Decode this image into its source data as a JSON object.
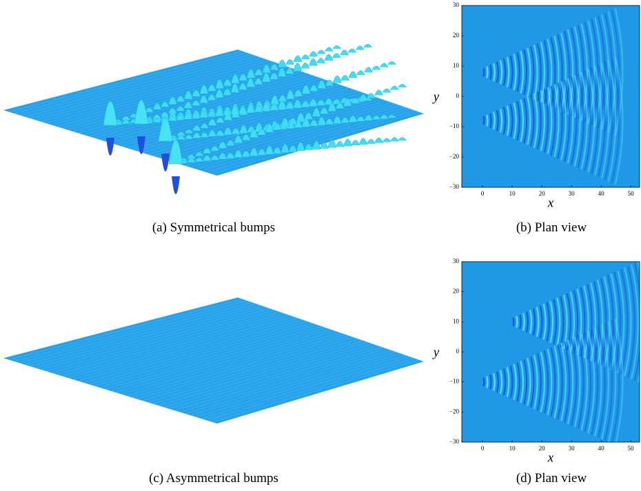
{
  "panels": [
    {
      "caption": "(a) Symmetrical bumps"
    },
    {
      "caption": "(b) Plan view",
      "xlabel": "x",
      "ylabel": "y",
      "xlim": [
        -7,
        53
      ],
      "ylim": [
        -30,
        30
      ],
      "xticks": [
        0,
        10,
        20,
        30,
        40,
        50
      ],
      "yticks": [
        {
          "value": -30,
          "label": "−30"
        },
        {
          "value": -20,
          "label": "−20"
        },
        {
          "value": -10,
          "label": "−10"
        },
        0,
        10,
        20,
        30
      ]
    },
    {
      "caption": "(c) Asymmetrical bumps"
    },
    {
      "caption": "(d) Plan view",
      "xlabel": "x",
      "ylabel": "y",
      "xlim": [
        -7,
        53
      ],
      "ylim": [
        -30,
        30
      ],
      "xticks": [
        0,
        10,
        20,
        30,
        40,
        50
      ],
      "yticks": [
        {
          "value": -30,
          "label": "−30"
        },
        {
          "value": -20,
          "label": "−20"
        },
        {
          "value": -10,
          "label": "−10"
        },
        0,
        10,
        20,
        30
      ]
    }
  ]
}
